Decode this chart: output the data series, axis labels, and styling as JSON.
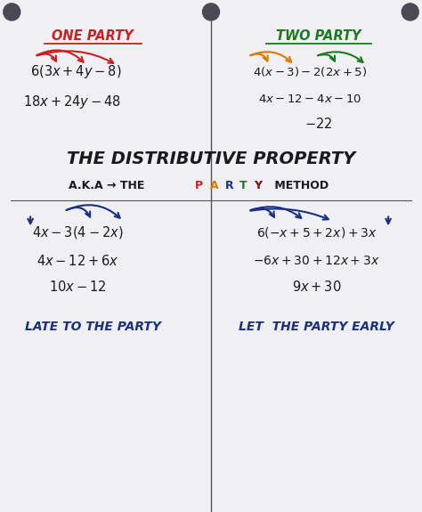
{
  "bg_color": "#f0f0f4",
  "title": "THE DISTRIBUTIVE PROPERTY",
  "one_party_label": "ONE PARTY",
  "two_party_label": "TWO PARTY",
  "late_label": "LATE TO THE PARTY",
  "left_label": "LET  THE PARTY EARLY",
  "line_color": "#555555",
  "text_color": "#1a1a1a",
  "blue_color": "#1a3080",
  "red_color": "#cc2020",
  "orange_color": "#e07800",
  "green_color": "#1a7a20",
  "party_letters": [
    "P",
    "A",
    "R",
    "T",
    "Y"
  ],
  "party_letter_colors": [
    "#cc2020",
    "#e07800",
    "#1a3080",
    "#1a7a20",
    "#8b0000"
  ]
}
